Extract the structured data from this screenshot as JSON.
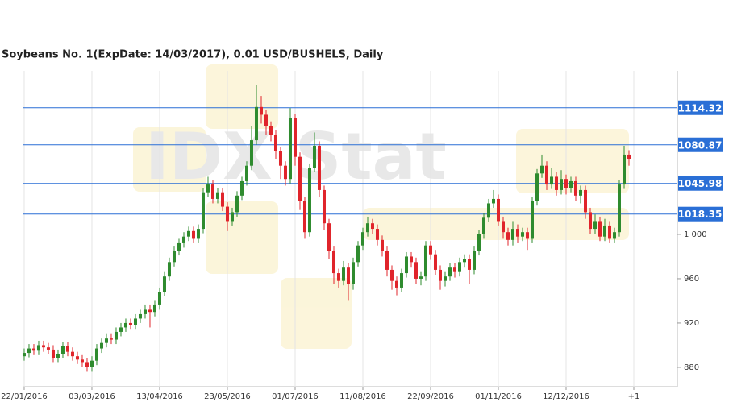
{
  "chart_data": {
    "type": "candlestick",
    "title": "Soybeans  No. 1(ExpDate: 14/03/2017), 0.01 USD/BUSHELS, Daily",
    "watermark": "IDX Stat",
    "up_color": "#2e8b2e",
    "down_color": "#e0242b",
    "level_color": "#2a6fd6",
    "xlim": [
      -0.33,
      135
    ],
    "ylim": [
      862.5,
      1147.6
    ],
    "xticks": [
      {
        "value": 0,
        "label": "22/01/2016"
      },
      {
        "value": 14,
        "label": "03/03/2016"
      },
      {
        "value": 28,
        "label": "13/04/2016"
      },
      {
        "value": 42,
        "label": "23/05/2016"
      },
      {
        "value": 56,
        "label": "01/07/2016"
      },
      {
        "value": 70,
        "label": "11/08/2016"
      },
      {
        "value": 84,
        "label": "22/09/2016"
      },
      {
        "value": 98,
        "label": "01/11/2016"
      },
      {
        "value": 112,
        "label": "12/12/2016"
      },
      {
        "value": 126,
        "label": "+1"
      }
    ],
    "yticks": [
      880,
      920,
      960,
      {
        "value": 1000,
        "label": "1 000"
      }
    ],
    "levels": [
      1114.32,
      1080.87,
      1045.98,
      1018.35
    ],
    "grid": true,
    "open": [
      890,
      893,
      897,
      895,
      900,
      898,
      896,
      888,
      892,
      899,
      894,
      890,
      887,
      884,
      880,
      886,
      897,
      902,
      906,
      905,
      912,
      916,
      920,
      918,
      924,
      928,
      932,
      930,
      936,
      948,
      962,
      975,
      985,
      992,
      998,
      1003,
      996,
      1005,
      1038,
      1045,
      1032,
      1038,
      1025,
      1012,
      1020,
      1035,
      1048,
      1062,
      1085,
      1115,
      1108,
      1098,
      1090,
      1075,
      1062,
      1050,
      1105,
      1070,
      1030,
      1002,
      1060,
      1080,
      1040,
      1010,
      985,
      965,
      958,
      970,
      955,
      975,
      990,
      1002,
      1010,
      1005,
      995,
      985,
      968,
      958,
      952,
      965,
      980,
      975,
      960,
      962,
      990,
      982,
      968,
      958,
      962,
      970,
      966,
      975,
      978,
      968,
      985,
      1000,
      1015,
      1028,
      1032,
      1012,
      1002,
      995,
      1005,
      998,
      1002,
      996,
      1030,
      1055,
      1062,
      1045,
      1052,
      1040,
      1050,
      1042,
      1048,
      1035,
      1040,
      1020,
      1005,
      1012,
      998,
      1008,
      996,
      1002,
      1045,
      1072
    ],
    "high": [
      897,
      901,
      901,
      904,
      904,
      902,
      900,
      896,
      903,
      903,
      898,
      894,
      891,
      888,
      890,
      901,
      906,
      910,
      910,
      916,
      920,
      924,
      924,
      928,
      932,
      936,
      936,
      940,
      952,
      966,
      979,
      989,
      996,
      1002,
      1007,
      1007,
      1009,
      1042,
      1052,
      1049,
      1042,
      1042,
      1029,
      1024,
      1039,
      1052,
      1066,
      1098,
      1135,
      1125,
      1112,
      1102,
      1094,
      1079,
      1066,
      1114,
      1109,
      1074,
      1034,
      1064,
      1092,
      1084,
      1044,
      1014,
      989,
      969,
      976,
      974,
      979,
      994,
      1006,
      1016,
      1014,
      1009,
      999,
      989,
      972,
      962,
      969,
      984,
      984,
      979,
      966,
      994,
      994,
      986,
      972,
      966,
      974,
      974,
      979,
      982,
      982,
      989,
      1004,
      1019,
      1032,
      1040,
      1036,
      1016,
      1006,
      1012,
      1009,
      1006,
      1006,
      1034,
      1059,
      1072,
      1066,
      1060,
      1056,
      1058,
      1054,
      1052,
      1052,
      1044,
      1044,
      1024,
      1018,
      1016,
      1014,
      1012,
      1006,
      1049,
      1080,
      1076
    ],
    "low": [
      886,
      889,
      891,
      891,
      894,
      892,
      884,
      884,
      888,
      890,
      886,
      883,
      880,
      876,
      876,
      882,
      893,
      898,
      901,
      901,
      908,
      912,
      914,
      914,
      920,
      924,
      916,
      926,
      932,
      944,
      958,
      971,
      981,
      988,
      994,
      992,
      992,
      1001,
      1034,
      1028,
      1028,
      1021,
      1003,
      1008,
      1016,
      1031,
      1044,
      1058,
      1081,
      1100,
      1090,
      1084,
      1068,
      1050,
      1044,
      1046,
      1062,
      1022,
      996,
      998,
      1056,
      1034,
      1004,
      978,
      955,
      952,
      954,
      940,
      950,
      971,
      986,
      998,
      1000,
      990,
      980,
      962,
      950,
      945,
      948,
      961,
      970,
      955,
      954,
      958,
      977,
      963,
      950,
      953,
      958,
      961,
      962,
      970,
      955,
      964,
      981,
      996,
      1011,
      1024,
      1008,
      996,
      990,
      990,
      992,
      994,
      986,
      992,
      1026,
      1051,
      1040,
      1041,
      1035,
      1036,
      1036,
      1038,
      1030,
      1028,
      1014,
      1000,
      1000,
      994,
      994,
      992,
      992,
      998,
      1041,
      1062
    ],
    "close": [
      893,
      897,
      895,
      900,
      898,
      896,
      888,
      892,
      899,
      894,
      890,
      887,
      884,
      880,
      886,
      897,
      902,
      906,
      905,
      912,
      916,
      920,
      918,
      924,
      928,
      932,
      930,
      936,
      948,
      962,
      975,
      985,
      992,
      998,
      1003,
      996,
      1005,
      1038,
      1045,
      1032,
      1038,
      1025,
      1012,
      1020,
      1035,
      1048,
      1062,
      1085,
      1115,
      1108,
      1098,
      1090,
      1075,
      1062,
      1050,
      1105,
      1070,
      1030,
      1002,
      1060,
      1080,
      1040,
      1010,
      985,
      965,
      958,
      970,
      955,
      975,
      990,
      1002,
      1010,
      1005,
      995,
      985,
      968,
      958,
      952,
      965,
      980,
      975,
      960,
      962,
      990,
      982,
      968,
      958,
      962,
      970,
      966,
      975,
      978,
      968,
      985,
      1000,
      1015,
      1028,
      1032,
      1012,
      1002,
      995,
      1005,
      998,
      1002,
      996,
      1030,
      1055,
      1062,
      1045,
      1052,
      1040,
      1050,
      1042,
      1048,
      1035,
      1040,
      1020,
      1005,
      1012,
      998,
      1008,
      996,
      1002,
      1045,
      1072,
      1068
    ]
  }
}
